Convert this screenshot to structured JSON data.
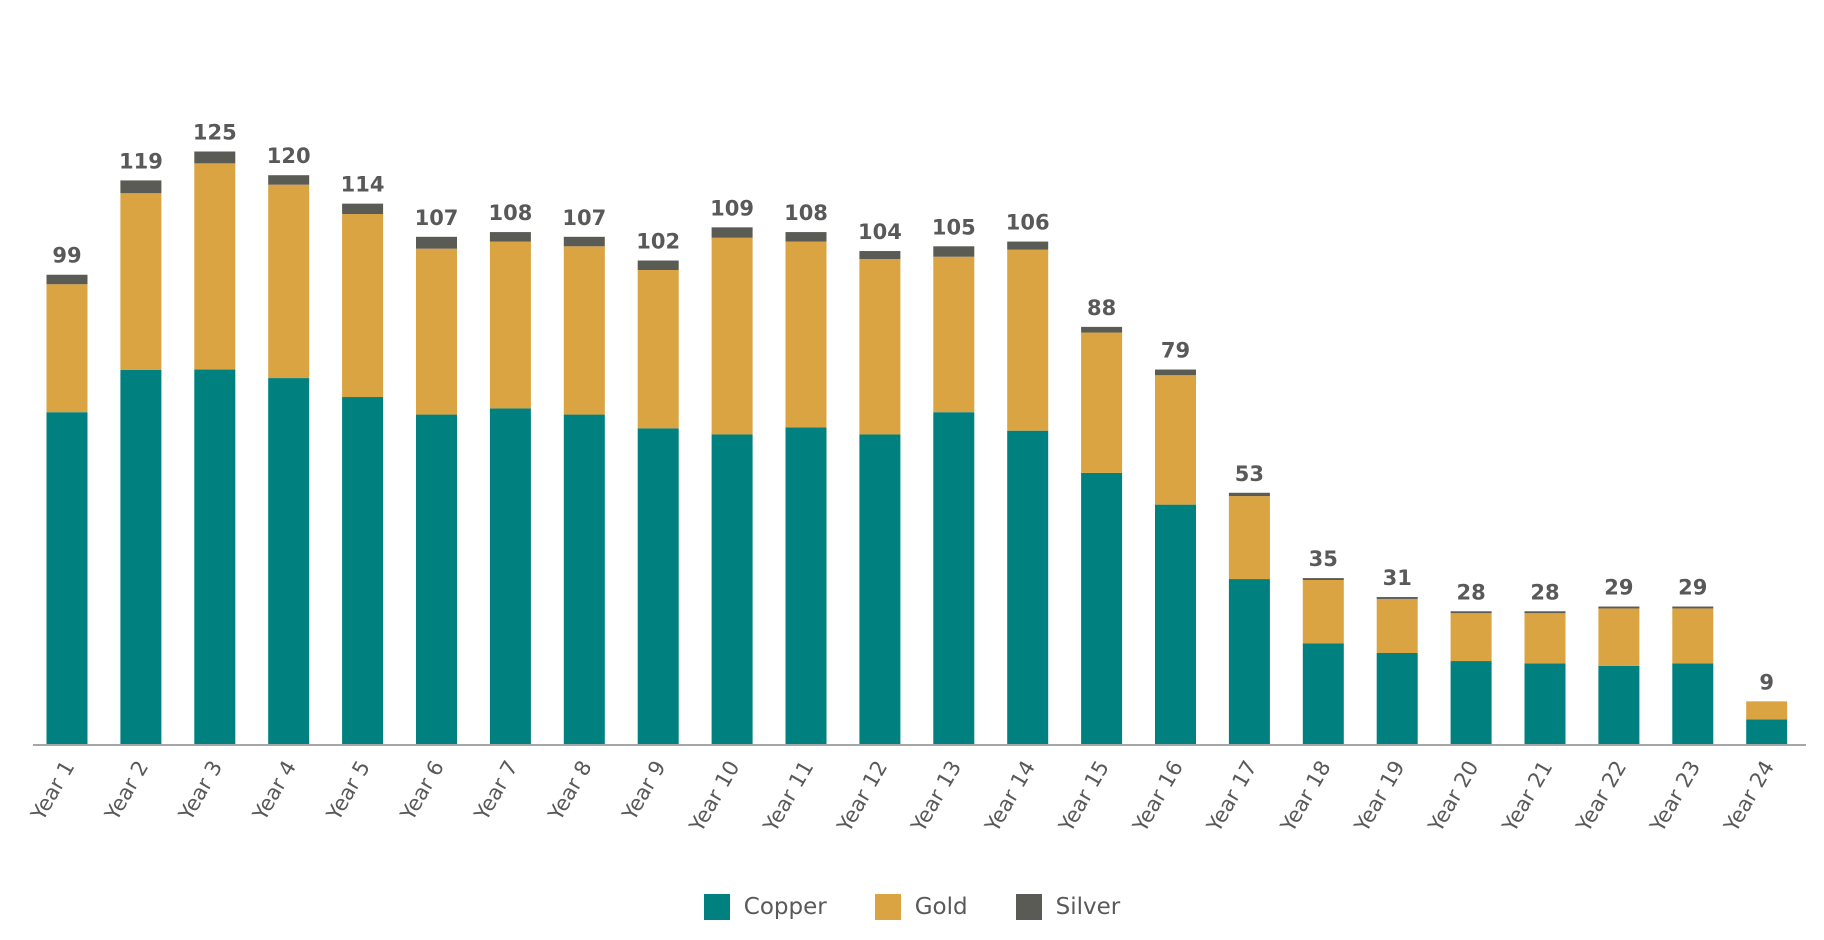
{
  "chart_data": {
    "type": "bar",
    "stacked": true,
    "categories": [
      "Year 1",
      "Year 2",
      "Year 3",
      "Year 4",
      "Year 5",
      "Year 6",
      "Year 7",
      "Year 8",
      "Year 9",
      "Year 10",
      "Year 11",
      "Year 12",
      "Year 13",
      "Year 14",
      "Year 15",
      "Year 16",
      "Year 17",
      "Year 18",
      "Year 19",
      "Year 20",
      "Year 21",
      "Year 22",
      "Year 23",
      "Year 24"
    ],
    "series": [
      {
        "name": "Copper",
        "color": "#00807F",
        "values": [
          70.0,
          78.9,
          79.0,
          77.2,
          73.2,
          69.5,
          70.8,
          69.5,
          66.6,
          65.3,
          66.8,
          65.3,
          70.0,
          66.1,
          57.2,
          50.5,
          34.8,
          21.2,
          19.2,
          17.5,
          17.0,
          16.5,
          17.0,
          5.2
        ]
      },
      {
        "name": "Gold",
        "color": "#D9A441",
        "values": [
          27.0,
          37.3,
          43.5,
          40.8,
          38.6,
          35.0,
          35.2,
          35.5,
          33.4,
          41.5,
          39.2,
          37.0,
          32.8,
          38.2,
          29.6,
          27.3,
          17.5,
          13.4,
          11.4,
          10.1,
          10.6,
          12.1,
          11.6,
          3.8
        ]
      },
      {
        "name": "Silver",
        "color": "#5B5B55",
        "values": [
          2.0,
          2.7,
          2.5,
          2.0,
          2.2,
          2.5,
          2.0,
          2.0,
          2.0,
          2.2,
          2.0,
          1.7,
          2.2,
          1.7,
          1.2,
          1.2,
          0.7,
          0.4,
          0.4,
          0.4,
          0.4,
          0.4,
          0.4,
          0.0
        ]
      }
    ],
    "totals": [
      "99",
      "119",
      "125",
      "120",
      "114",
      "107",
      "108",
      "107",
      "102",
      "109",
      "108",
      "104",
      "105",
      "106",
      "88",
      "79",
      "53",
      "35",
      "31",
      "28",
      "28",
      "29",
      "29",
      "9"
    ],
    "ylim": [
      0,
      125
    ],
    "y_axis_visible": false,
    "grid": false,
    "legend": "bottom"
  }
}
